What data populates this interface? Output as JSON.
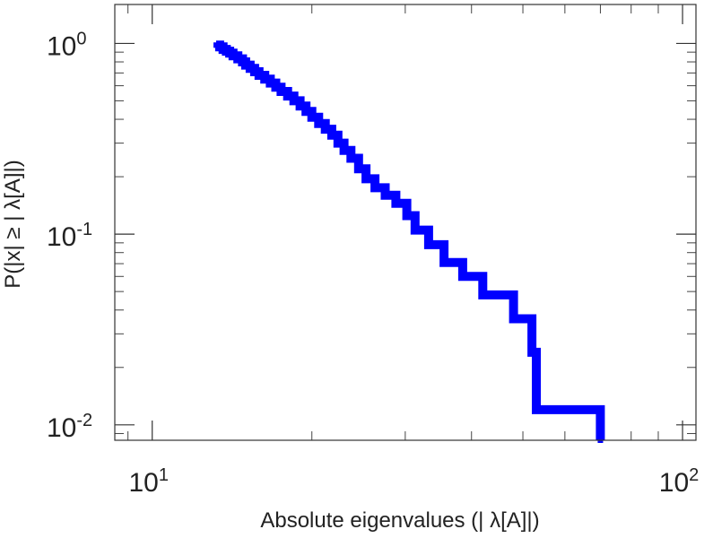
{
  "chart_data": {
    "type": "line",
    "title": "",
    "xlabel": "Absolute eigenvalues (|      λ[A]|)",
    "ylabel": "P(|x|  ≥ | λ[A]|)",
    "x_scale": "log",
    "y_scale": "log",
    "xlim": [
      8.5,
      106
    ],
    "ylim": [
      0.0083,
      1.6
    ],
    "grid": false,
    "legend": "none",
    "x_ticks": [
      {
        "value": 10,
        "base": "10",
        "exp": "1"
      },
      {
        "value": 100,
        "base": "10",
        "exp": "2"
      }
    ],
    "y_ticks": [
      {
        "value": 1,
        "base": "10",
        "exp": "0"
      },
      {
        "value": 0.1,
        "base": "10",
        "exp": "-1"
      },
      {
        "value": 0.01,
        "base": "10",
        "exp": "-2"
      }
    ],
    "series": [
      {
        "color": "#0000ff",
        "x": [
          13.2,
          13.4,
          13.6,
          13.8,
          14.0,
          14.2,
          14.5,
          14.8,
          15.0,
          15.3,
          15.6,
          15.9,
          16.3,
          16.7,
          17.1,
          17.5,
          18.0,
          18.5,
          19.0,
          19.5,
          20.0,
          20.6,
          21.2,
          21.8,
          22.4,
          23.0,
          23.7,
          24.5,
          25.3,
          26.3,
          27.5,
          28.8,
          30.2,
          31.3,
          33.2,
          35.5,
          38.5,
          42.0,
          48.0,
          52.0,
          53.0,
          70.0
        ],
        "y": [
          0.98,
          0.96,
          0.93,
          0.91,
          0.89,
          0.86,
          0.83,
          0.8,
          0.77,
          0.74,
          0.71,
          0.68,
          0.65,
          0.62,
          0.59,
          0.56,
          0.53,
          0.5,
          0.47,
          0.44,
          0.41,
          0.38,
          0.355,
          0.33,
          0.3,
          0.275,
          0.25,
          0.22,
          0.195,
          0.175,
          0.16,
          0.145,
          0.125,
          0.105,
          0.088,
          0.071,
          0.06,
          0.048,
          0.036,
          0.024,
          0.012,
          0.0083
        ]
      }
    ]
  }
}
